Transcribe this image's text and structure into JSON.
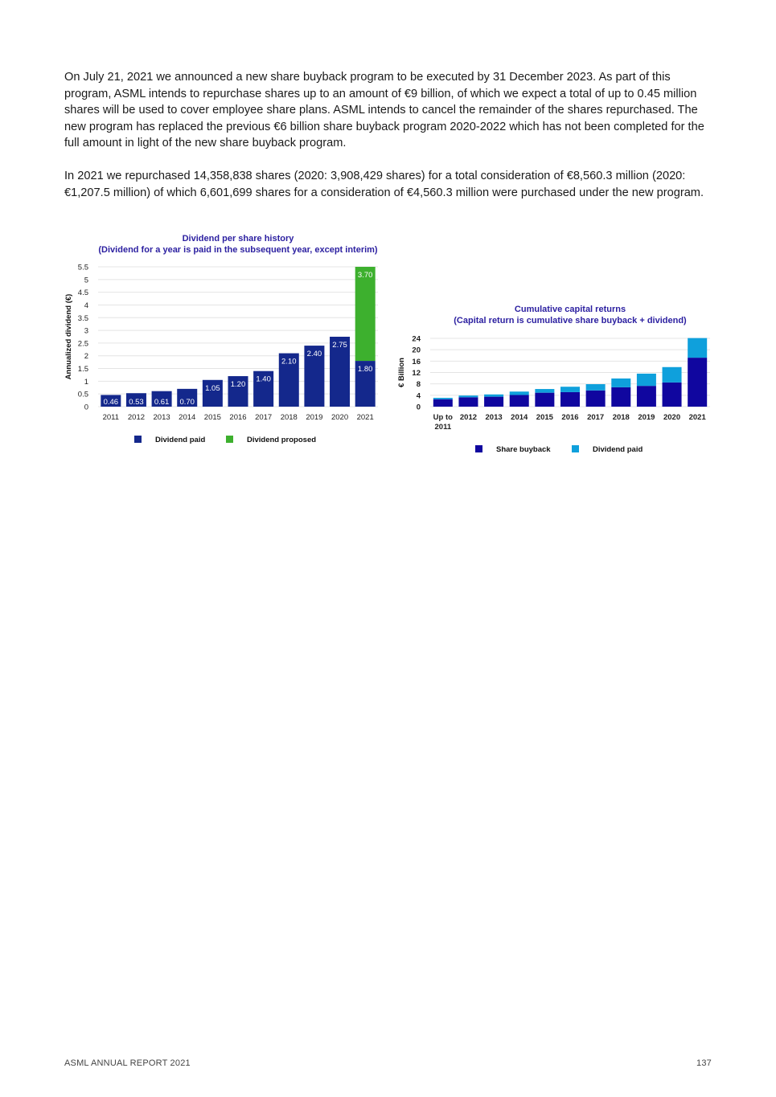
{
  "paragraphs": [
    "On July 21, 2021 we announced a new share buyback program to be executed by 31 December 2023. As part of this program, ASML intends to repurchase shares up to an amount of €9 billion, of which we expect a total of up to 0.45 million shares will be used to cover employee share plans. ASML intends to cancel the remainder of the shares repurchased. The new program has replaced the previous €6 billion share buyback program 2020-2022 which has not been completed for the full amount in light of the new share buyback program.",
    "In 2021 we repurchased 14,358,838 shares (2020: 3,908,429 shares) for a total consideration of €8,560.3 million (2020: €1,207.5 million) of which 6,601,699 shares for a consideration of €4,560.3 million were purchased under the new program."
  ],
  "footer": {
    "left": "ASML ANNUAL REPORT 2021",
    "right": "137"
  },
  "chart_data": [
    {
      "type": "bar",
      "stacked": true,
      "title": "Dividend per share history",
      "subtitle": "(Dividend for a year is paid in the subsequent year, except interim)",
      "xlabel": "",
      "ylabel": "Annualized dividend (€)",
      "ylim": [
        0,
        5.5
      ],
      "yticks": [
        "0",
        "0.5",
        "1",
        "1.5",
        "2",
        "2.5",
        "3",
        "3.5",
        "4",
        "4.5",
        "5",
        "5.5"
      ],
      "grid": true,
      "legend": "bottom",
      "categories": [
        "2011",
        "2012",
        "2013",
        "2014",
        "2015",
        "2016",
        "2017",
        "2018",
        "2019",
        "2020",
        "2021"
      ],
      "series": [
        {
          "name": "Dividend paid",
          "color": "#14288c",
          "values": [
            0.46,
            0.53,
            0.61,
            0.7,
            1.05,
            1.2,
            1.4,
            2.1,
            2.4,
            2.75,
            1.8
          ],
          "labels": [
            "0.46",
            "0.53",
            "0.61",
            "0.70",
            "1.05",
            "1.20",
            "1.40",
            "2.10",
            "2.40",
            "2.75",
            "1.80"
          ]
        },
        {
          "name": "Dividend proposed",
          "color": "#3db02e",
          "values": [
            0,
            0,
            0,
            0,
            0,
            0,
            0,
            0,
            0,
            0,
            3.7
          ],
          "labels": [
            "",
            "",
            "",
            "",
            "",
            "",
            "",
            "",
            "",
            "",
            "3.70"
          ]
        }
      ]
    },
    {
      "type": "bar",
      "stacked": true,
      "title": "Cumulative capital returns",
      "subtitle": "(Capital return is cumulative share buyback + dividend)",
      "xlabel": "",
      "ylabel": "€ Billion",
      "ylim": [
        0,
        24
      ],
      "yticks": [
        "0",
        "4",
        "8",
        "12",
        "16",
        "20",
        "24"
      ],
      "grid": true,
      "legend": "bottom",
      "categories": [
        [
          "Up to",
          "2011"
        ],
        [
          "2012"
        ],
        [
          "2013"
        ],
        [
          "2014"
        ],
        [
          "2015"
        ],
        [
          "2016"
        ],
        [
          "2017"
        ],
        [
          "2018"
        ],
        [
          "2019"
        ],
        [
          "2020"
        ],
        [
          "2021"
        ]
      ],
      "series": [
        {
          "name": "Share buyback",
          "color": "#10069f",
          "values": [
            2.6,
            3.3,
            3.5,
            4.1,
            4.9,
            5.1,
            5.7,
            6.8,
            7.3,
            8.5,
            17.2
          ]
        },
        {
          "name": "Dividend paid",
          "color": "#0fa0dc",
          "values": [
            0.5,
            0.6,
            0.8,
            1.2,
            1.3,
            1.9,
            2.2,
            3.1,
            4.3,
            5.4,
            6.9
          ]
        }
      ]
    }
  ]
}
